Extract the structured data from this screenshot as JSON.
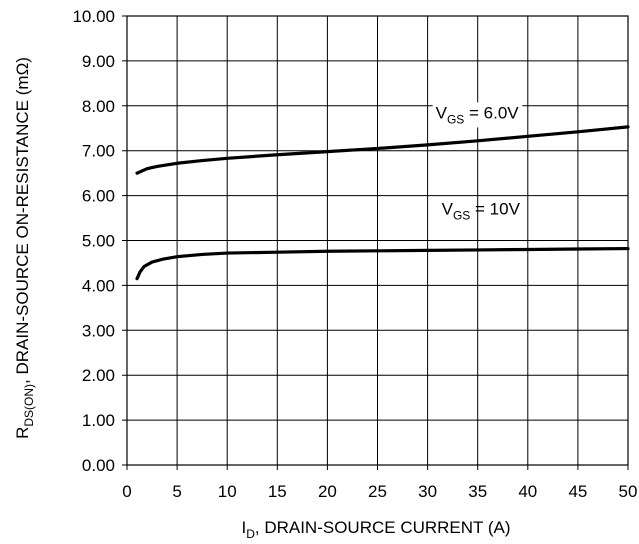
{
  "chart_data": {
    "type": "line",
    "xlabel": {
      "main": "I",
      "sub": "D",
      "rest": ", DRAIN-SOURCE CURRENT (A)"
    },
    "ylabel": {
      "main": "R",
      "sub": "DS(ON)",
      "rest": ", DRAIN-SOURCE ON-RESISTANCE (mΩ)"
    },
    "xlim": [
      0,
      50
    ],
    "ylim": [
      0,
      10
    ],
    "xticks": [
      "0",
      "5",
      "10",
      "15",
      "20",
      "25",
      "30",
      "35",
      "40",
      "45",
      "50"
    ],
    "yticks": [
      "0.00",
      "1.00",
      "2.00",
      "3.00",
      "4.00",
      "5.00",
      "6.00",
      "7.00",
      "8.00",
      "9.00",
      "10.00"
    ],
    "grid": true,
    "series": [
      {
        "name": "VGS = 6.0V",
        "label": {
          "main": "V",
          "sub": "GS",
          "rest": " = 6.0V"
        },
        "points": [
          [
            1,
            6.5
          ],
          [
            1.5,
            6.55
          ],
          [
            2,
            6.6
          ],
          [
            3,
            6.65
          ],
          [
            5,
            6.72
          ],
          [
            7.5,
            6.78
          ],
          [
            10,
            6.83
          ],
          [
            15,
            6.91
          ],
          [
            20,
            6.98
          ],
          [
            25,
            7.05
          ],
          [
            30,
            7.13
          ],
          [
            35,
            7.22
          ],
          [
            40,
            7.32
          ],
          [
            45,
            7.42
          ],
          [
            50,
            7.53
          ]
        ]
      },
      {
        "name": "VGS = 10V",
        "label": {
          "main": "V",
          "sub": "GS",
          "rest": " = 10V"
        },
        "points": [
          [
            1,
            4.15
          ],
          [
            1.3,
            4.3
          ],
          [
            1.7,
            4.42
          ],
          [
            2.5,
            4.52
          ],
          [
            3.5,
            4.58
          ],
          [
            5,
            4.64
          ],
          [
            7.5,
            4.69
          ],
          [
            10,
            4.72
          ],
          [
            15,
            4.74
          ],
          [
            20,
            4.76
          ],
          [
            25,
            4.77
          ],
          [
            30,
            4.78
          ],
          [
            35,
            4.79
          ],
          [
            40,
            4.8
          ],
          [
            45,
            4.81
          ],
          [
            50,
            4.82
          ]
        ]
      }
    ],
    "colors": {
      "line": "#000000",
      "grid": "#000000",
      "background": "#ffffff"
    }
  }
}
